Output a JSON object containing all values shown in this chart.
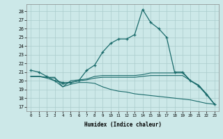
{
  "xlabel": "Humidex (Indice chaleur)",
  "ylabel": "",
  "background_color": "#cce8e8",
  "grid_color": "#aacccc",
  "line_color": "#1a6b6b",
  "xlim": [
    -0.5,
    23.5
  ],
  "ylim": [
    16.5,
    28.8
  ],
  "yticks": [
    17,
    18,
    19,
    20,
    21,
    22,
    23,
    24,
    25,
    26,
    27,
    28
  ],
  "xticks": [
    0,
    1,
    2,
    3,
    4,
    5,
    6,
    7,
    8,
    9,
    10,
    11,
    12,
    13,
    14,
    15,
    16,
    17,
    18,
    19,
    20,
    21,
    22,
    23
  ],
  "line1_x": [
    0,
    1,
    2,
    3,
    4,
    5,
    6,
    7,
    8,
    9,
    10,
    11,
    12,
    13,
    14,
    15,
    16,
    17,
    18,
    19,
    20,
    21,
    22,
    23
  ],
  "line1_y": [
    21.2,
    21.0,
    20.5,
    20.0,
    19.8,
    19.8,
    20.0,
    21.2,
    21.8,
    23.3,
    24.3,
    24.8,
    24.8,
    25.3,
    28.2,
    26.7,
    26.0,
    25.0,
    21.0,
    21.0,
    20.0,
    19.4,
    18.4,
    17.3
  ],
  "line2_x": [
    0,
    1,
    2,
    3,
    4,
    5,
    6,
    7,
    8,
    9,
    10,
    11,
    12,
    13,
    14,
    15,
    16,
    17,
    18,
    19,
    20,
    21,
    22,
    23
  ],
  "line2_y": [
    20.5,
    20.5,
    20.4,
    20.4,
    19.3,
    20.0,
    20.1,
    20.2,
    20.5,
    20.6,
    20.6,
    20.6,
    20.6,
    20.6,
    20.7,
    20.9,
    20.9,
    20.9,
    20.9,
    20.9,
    20.0,
    19.5,
    18.5,
    17.3
  ],
  "line3_x": [
    0,
    1,
    2,
    3,
    4,
    5,
    6,
    7,
    8,
    9,
    10,
    11,
    12,
    13,
    14,
    15,
    16,
    17,
    18,
    19,
    20,
    21,
    22,
    23
  ],
  "line3_y": [
    20.5,
    20.5,
    20.4,
    20.3,
    19.6,
    19.8,
    20.0,
    20.1,
    20.3,
    20.4,
    20.4,
    20.4,
    20.4,
    20.4,
    20.5,
    20.6,
    20.6,
    20.6,
    20.6,
    20.6,
    20.0,
    19.5,
    18.4,
    17.3
  ],
  "line4_x": [
    0,
    1,
    2,
    3,
    4,
    5,
    6,
    7,
    8,
    9,
    10,
    11,
    12,
    13,
    14,
    15,
    16,
    17,
    18,
    19,
    20,
    21,
    22,
    23
  ],
  "line4_y": [
    20.5,
    20.5,
    20.3,
    20.0,
    19.3,
    19.6,
    19.8,
    19.8,
    19.7,
    19.3,
    19.0,
    18.8,
    18.7,
    18.5,
    18.4,
    18.3,
    18.2,
    18.1,
    18.0,
    17.9,
    17.8,
    17.6,
    17.4,
    17.3
  ]
}
